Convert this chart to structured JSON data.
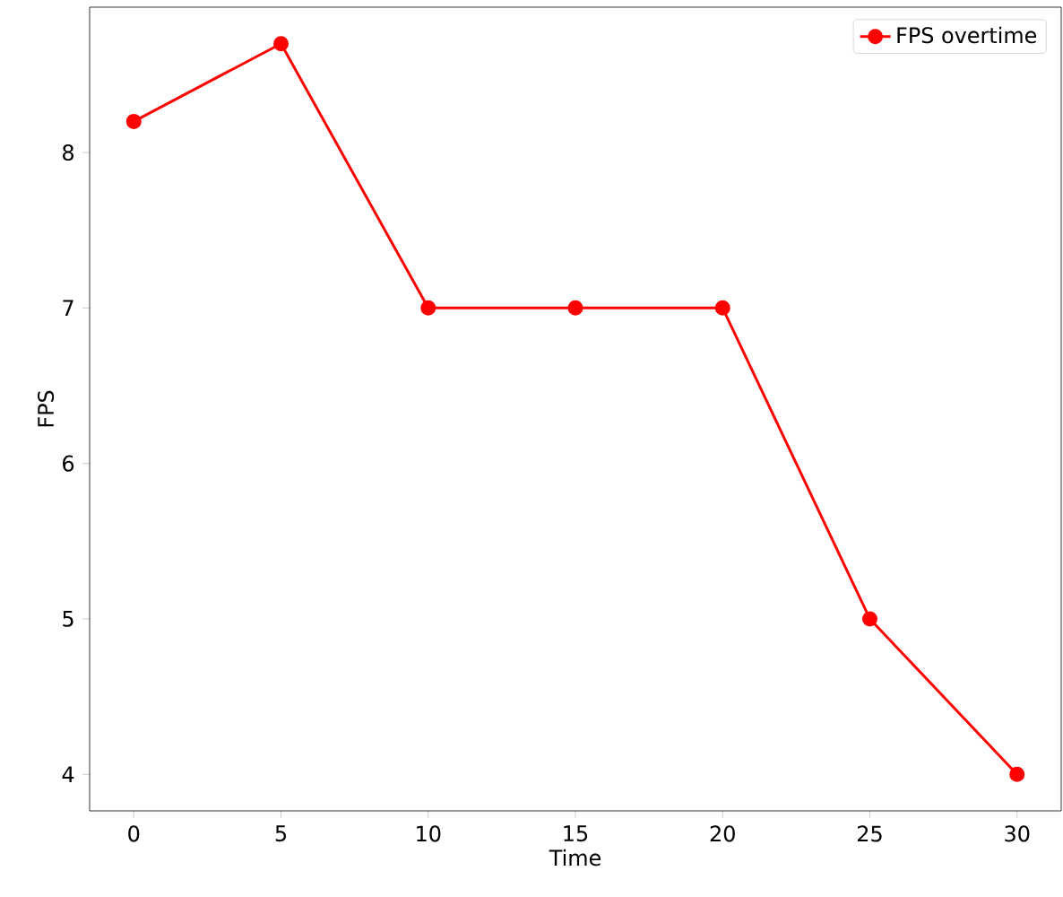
{
  "chart_data": {
    "type": "line",
    "xlabel": "Time",
    "ylabel": "FPS",
    "x": [
      0,
      5,
      10,
      15,
      20,
      25,
      30
    ],
    "series": [
      {
        "name": "FPS overtime",
        "color": "#ff0000",
        "values": [
          8.2,
          8.7,
          7,
          7,
          7,
          5,
          4
        ]
      }
    ],
    "xlim": [
      -1.5,
      31.5
    ],
    "ylim": [
      3.765,
      8.935
    ],
    "xticks": [
      0,
      5,
      10,
      15,
      20,
      25,
      30
    ],
    "yticks": [
      4,
      5,
      6,
      7,
      8
    ],
    "legend": "top right",
    "marker": "circle",
    "line_style": "solid",
    "grid": false
  }
}
